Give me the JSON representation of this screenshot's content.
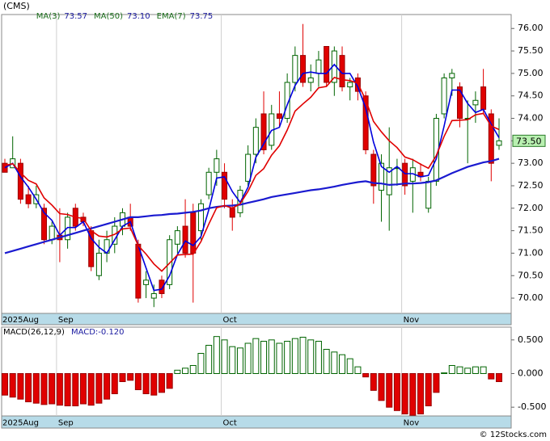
{
  "chart_data": [
    {
      "type": "candlestick",
      "title": "(CMS)",
      "categories": [
        "2025Aug",
        null,
        null,
        null,
        null,
        null,
        null,
        "Sep",
        null,
        null,
        null,
        null,
        null,
        null,
        null,
        null,
        null,
        null,
        null,
        null,
        null,
        null,
        null,
        null,
        null,
        null,
        null,
        null,
        "Oct",
        null,
        null,
        null,
        null,
        null,
        null,
        null,
        null,
        null,
        null,
        null,
        null,
        null,
        null,
        null,
        null,
        null,
        null,
        null,
        null,
        null,
        null,
        "Nov",
        null,
        null,
        null,
        null,
        null,
        null,
        null,
        null,
        null,
        null,
        null,
        null
      ],
      "open": [
        73.0,
        72.9,
        73.0,
        72.3,
        72.1,
        72.0,
        71.3,
        71.4,
        71.3,
        72.0,
        71.8,
        71.5,
        70.5,
        71.0,
        71.2,
        71.6,
        71.8,
        71.2,
        70.3,
        70.0,
        70.4,
        70.3,
        71.2,
        71.6,
        71.9,
        71.5,
        72.3,
        72.8,
        72.8,
        72.0,
        71.9,
        72.6,
        73.2,
        74.1,
        73.4,
        74.1,
        74.0,
        74.8,
        75.4,
        74.8,
        75.0,
        75.6,
        74.8,
        75.4,
        74.7,
        74.9,
        74.5,
        73.2,
        72.4,
        72.3,
        72.9,
        73.0,
        72.6,
        72.8,
        72.0,
        72.6,
        74.1,
        74.9,
        74.7,
        74.0,
        74.3,
        74.7,
        74.1,
        73.4
      ],
      "high": [
        73.1,
        73.6,
        73.1,
        72.5,
        72.5,
        72.1,
        71.7,
        72.0,
        71.9,
        72.1,
        71.9,
        71.6,
        71.3,
        71.5,
        71.8,
        72.0,
        72.1,
        71.3,
        70.6,
        70.3,
        70.5,
        71.4,
        71.6,
        72.2,
        72.1,
        72.2,
        72.9,
        73.3,
        73.0,
        72.2,
        72.5,
        73.4,
        74.0,
        74.6,
        74.3,
        74.6,
        75.0,
        75.6,
        76.1,
        75.2,
        75.5,
        75.6,
        75.6,
        75.6,
        74.9,
        75.0,
        74.6,
        73.3,
        73.2,
        73.8,
        73.1,
        73.1,
        73.1,
        73.0,
        72.7,
        74.1,
        75.0,
        75.1,
        74.8,
        74.4,
        74.6,
        75.1,
        74.2,
        74.0
      ],
      "low": [
        72.8,
        72.9,
        72.1,
        72.0,
        72.0,
        71.2,
        71.2,
        70.8,
        71.1,
        71.5,
        71.6,
        70.6,
        70.4,
        70.8,
        71.0,
        71.4,
        71.5,
        69.9,
        70.0,
        69.8,
        70.0,
        70.2,
        71.0,
        70.9,
        69.9,
        71.3,
        72.2,
        72.5,
        72.0,
        71.5,
        71.8,
        72.5,
        73.0,
        73.2,
        73.3,
        73.8,
        73.9,
        74.6,
        74.7,
        74.6,
        74.7,
        74.7,
        74.5,
        74.6,
        74.4,
        74.4,
        73.2,
        72.1,
        71.7,
        71.5,
        72.5,
        72.3,
        71.9,
        72.6,
        71.9,
        72.5,
        74.0,
        74.5,
        73.8,
        73.0,
        73.9,
        74.1,
        72.6,
        73.3
      ],
      "close": [
        72.8,
        73.1,
        72.2,
        72.1,
        72.3,
        71.3,
        71.6,
        71.3,
        71.8,
        71.6,
        71.7,
        70.7,
        71.0,
        71.3,
        71.6,
        71.9,
        71.6,
        70.0,
        70.4,
        70.1,
        70.1,
        71.3,
        71.5,
        71.0,
        71.0,
        72.1,
        72.8,
        73.1,
        72.2,
        71.8,
        72.4,
        73.2,
        73.8,
        73.3,
        74.1,
        74.0,
        74.8,
        75.4,
        74.8,
        74.9,
        75.3,
        74.8,
        75.5,
        74.7,
        74.8,
        74.6,
        73.3,
        72.5,
        73.0,
        72.9,
        72.9,
        72.5,
        72.9,
        72.7,
        72.6,
        74.0,
        74.9,
        75.0,
        74.0,
        74.0,
        74.4,
        74.2,
        73.0,
        73.5
      ],
      "up_color": "#006400",
      "down_color": "#e00000",
      "series": [
        {
          "name": "MA(3)",
          "last": "73.57",
          "color": "#0000dd",
          "values": [
            72.9,
            73.0,
            72.7,
            72.47,
            72.2,
            71.9,
            71.73,
            71.4,
            71.57,
            71.57,
            71.7,
            71.33,
            71.13,
            71.0,
            71.3,
            71.6,
            71.7,
            71.17,
            70.67,
            70.17,
            70.2,
            70.5,
            70.97,
            71.27,
            71.17,
            71.37,
            71.97,
            72.67,
            72.7,
            72.37,
            72.13,
            72.47,
            73.13,
            73.43,
            73.73,
            73.8,
            74.3,
            74.73,
            75.0,
            75.03,
            75.0,
            75.0,
            75.2,
            75.0,
            75.0,
            74.7,
            74.23,
            73.47,
            72.93,
            72.8,
            72.93,
            72.77,
            72.77,
            72.7,
            72.73,
            73.1,
            73.83,
            74.63,
            74.63,
            74.33,
            74.13,
            74.2,
            73.87,
            73.57
          ]
        },
        {
          "name": "MA(50)",
          "last": "73.10",
          "color": "#1a1ad0",
          "values": [
            71.0,
            71.05,
            71.1,
            71.15,
            71.2,
            71.25,
            71.3,
            71.35,
            71.4,
            71.45,
            71.5,
            71.55,
            71.6,
            71.65,
            71.7,
            71.75,
            71.8,
            71.8,
            71.82,
            71.84,
            71.85,
            71.87,
            71.88,
            71.9,
            71.92,
            71.95,
            72.0,
            72.03,
            72.05,
            72.06,
            72.08,
            72.12,
            72.16,
            72.2,
            72.25,
            72.28,
            72.31,
            72.34,
            72.37,
            72.4,
            72.42,
            72.45,
            72.48,
            72.52,
            72.55,
            72.58,
            72.6,
            72.56,
            72.55,
            72.52,
            72.53,
            72.55,
            72.55,
            72.56,
            72.58,
            72.62,
            72.7,
            72.78,
            72.85,
            72.92,
            72.97,
            73.02,
            73.05,
            73.1
          ]
        },
        {
          "name": "EMA(7)",
          "last": "73.75",
          "color": "#e00000",
          "values": [
            72.95,
            72.99,
            72.79,
            72.62,
            72.54,
            72.23,
            72.07,
            71.88,
            71.86,
            71.8,
            71.77,
            71.5,
            71.38,
            71.36,
            71.42,
            71.54,
            71.56,
            71.17,
            70.98,
            70.76,
            70.6,
            70.78,
            70.96,
            70.97,
            70.98,
            71.26,
            71.65,
            72.01,
            72.06,
            72.0,
            72.1,
            72.38,
            72.73,
            72.88,
            73.18,
            73.39,
            73.74,
            74.16,
            74.32,
            74.47,
            74.68,
            74.71,
            74.91,
            74.86,
            74.84,
            74.78,
            74.41,
            73.93,
            73.7,
            73.5,
            73.35,
            73.14,
            73.08,
            72.98,
            72.89,
            73.17,
            73.6,
            73.95,
            73.96,
            73.97,
            74.08,
            74.11,
            73.83,
            73.75
          ]
        }
      ],
      "last_price": {
        "value": 73.5,
        "label": "73.50"
      },
      "ylim": [
        69.66,
        76.31
      ],
      "yticks": [
        {
          "value": 70,
          "label": "70.00"
        },
        {
          "value": 70.5,
          "label": "70.50"
        },
        {
          "value": 71,
          "label": "71.00"
        },
        {
          "value": 71.5,
          "label": "71.50"
        },
        {
          "value": 72,
          "label": "72.00"
        },
        {
          "value": 72.5,
          "label": "72.50"
        },
        {
          "value": 73,
          "label": "73.00"
        },
        {
          "value": 73.5,
          "label": "73.50"
        },
        {
          "value": 74,
          "label": "74.00"
        },
        {
          "value": 74.5,
          "label": "74.50"
        },
        {
          "value": 75,
          "label": "75.00"
        },
        {
          "value": 75.5,
          "label": "75.50"
        },
        {
          "value": 76,
          "label": "76.00"
        }
      ]
    },
    {
      "type": "histogram",
      "title": "MACD(26,12,9)",
      "subtitle": "MACD:-0.120",
      "categories": [
        "2025Aug",
        null,
        null,
        null,
        null,
        null,
        null,
        "Sep",
        null,
        null,
        null,
        null,
        null,
        null,
        null,
        null,
        null,
        null,
        null,
        null,
        null,
        null,
        null,
        null,
        null,
        null,
        null,
        null,
        "Oct",
        null,
        null,
        null,
        null,
        null,
        null,
        null,
        null,
        null,
        null,
        null,
        null,
        null,
        null,
        null,
        null,
        null,
        null,
        null,
        null,
        null,
        null,
        "Nov",
        null,
        null,
        null,
        null,
        null,
        null,
        null,
        null,
        null,
        null,
        null,
        null
      ],
      "values": [
        -0.32,
        -0.35,
        -0.38,
        -0.42,
        -0.44,
        -0.46,
        -0.45,
        -0.47,
        -0.48,
        -0.48,
        -0.45,
        -0.47,
        -0.44,
        -0.38,
        -0.3,
        -0.12,
        -0.1,
        -0.24,
        -0.3,
        -0.32,
        -0.28,
        -0.22,
        0.05,
        0.08,
        0.12,
        0.3,
        0.42,
        0.55,
        0.5,
        0.4,
        0.38,
        0.45,
        0.52,
        0.48,
        0.5,
        0.45,
        0.48,
        0.52,
        0.54,
        0.5,
        0.48,
        0.36,
        0.32,
        0.28,
        0.22,
        0.1,
        -0.05,
        -0.25,
        -0.4,
        -0.5,
        -0.55,
        -0.6,
        -0.62,
        -0.6,
        -0.48,
        -0.28,
        0.01,
        0.12,
        0.1,
        0.08,
        0.1,
        0.1,
        -0.08,
        -0.12
      ],
      "up_color": "#006400",
      "down_color": "#e00000",
      "ylim": [
        -0.63,
        0.69
      ],
      "yticks": [
        {
          "value": -0.5,
          "label": "-0.500"
        },
        {
          "value": 0,
          "label": "0.000"
        },
        {
          "value": 0.5,
          "label": "0.500"
        }
      ]
    }
  ],
  "footer": "© 12Stocks.com"
}
